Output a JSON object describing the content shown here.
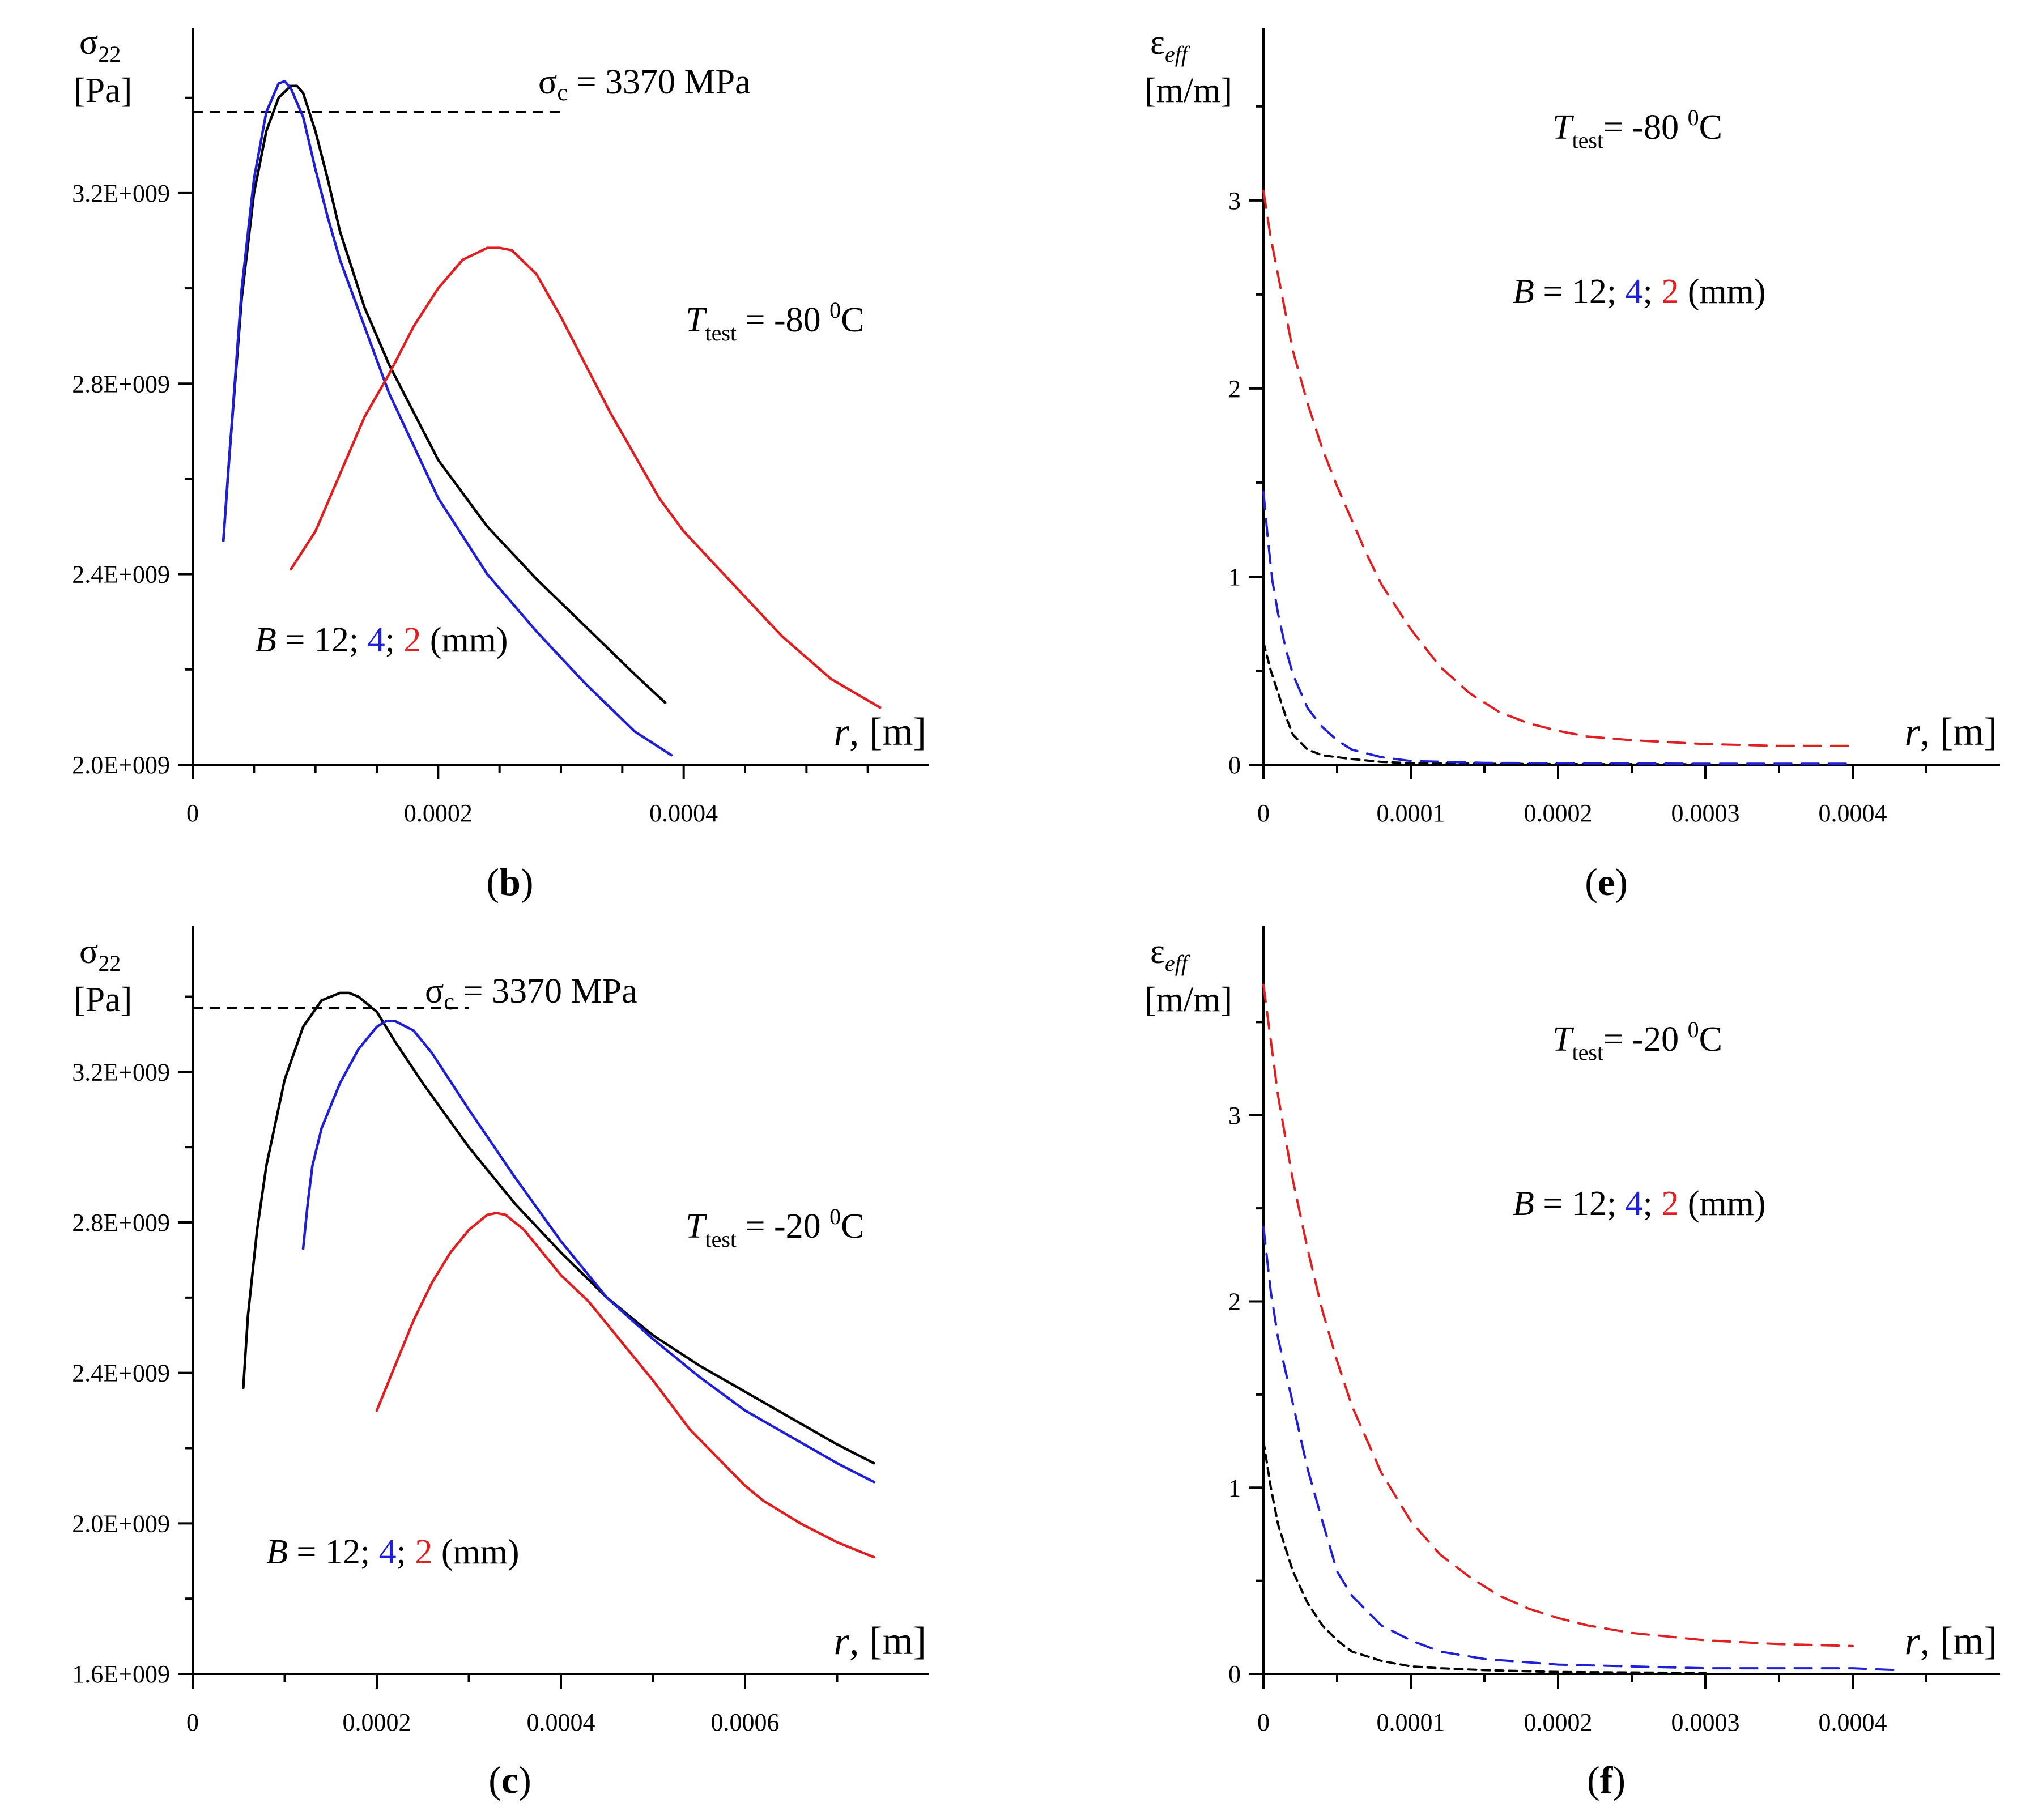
{
  "chart_data": [
    {
      "id": "b",
      "type": "line",
      "panel_label": "(b)",
      "ylabel_symbol": "σ",
      "ylabel_subscript": "22",
      "ylabel_unit": "[Pa]",
      "xlabel_var": "r",
      "xlabel_unit": ", [m]",
      "xlim": [
        0,
        0.0006
      ],
      "ylim": [
        2000000000,
        3540000000
      ],
      "xticks_major": [
        0,
        0.0002,
        0.0004
      ],
      "xtick_labels": [
        "0",
        "0.0002",
        "0.0004"
      ],
      "xticks_minor": [
        5e-05,
        0.0001,
        0.00015,
        0.00025,
        0.0003,
        0.00035,
        0.00045,
        0.0005,
        0.00055
      ],
      "yticks_major": [
        2000000000,
        2400000000,
        2800000000,
        3200000000
      ],
      "ytick_labels": [
        "2.0E+009",
        "2.4E+009",
        "2.8E+009",
        "3.2E+009"
      ],
      "yticks_minor": [
        2200000000,
        2600000000,
        3000000000,
        3400000000
      ],
      "critical_stress": {
        "label_symbol": "σ",
        "label_subscript": "c",
        "label_value": " = 3370 MPa",
        "value": 3370000000,
        "x_range": [
          0,
          0.0003
        ],
        "color": "#000000"
      },
      "temperature": {
        "symbol": "T",
        "subscript": "test",
        "value_text": " = -80 ",
        "unit_sup": "0",
        "unit": "C"
      },
      "thickness": {
        "prefix": "B",
        "eq": " = ",
        "values": [
          "12",
          "4",
          "2"
        ],
        "colors": [
          "#000000",
          "#1f1fd6",
          "#e02020"
        ],
        "sep": "; ",
        "unit": " (mm)"
      },
      "series": [
        {
          "name": "B = 12 mm",
          "color": "#000000",
          "dash": false,
          "x": [
            2.5e-05,
            3e-05,
            4e-05,
            5e-05,
            6e-05,
            7e-05,
            8e-05,
            8.5e-05,
            9e-05,
            0.0001,
            0.00011,
            0.00012,
            0.00014,
            0.00016,
            0.0002,
            0.00024,
            0.00028,
            0.00032,
            0.00036,
            0.000385
          ],
          "y": [
            2470000000,
            2650000000,
            2980000000,
            3200000000,
            3330000000,
            3400000000,
            3425000000,
            3425000000,
            3410000000,
            3330000000,
            3230000000,
            3120000000,
            2960000000,
            2840000000,
            2640000000,
            2500000000,
            2390000000,
            2290000000,
            2190000000,
            2130000000
          ]
        },
        {
          "name": "B = 4 mm",
          "color": "#1f1fd6",
          "dash": false,
          "x": [
            2.5e-05,
            3e-05,
            4e-05,
            5e-05,
            6e-05,
            7e-05,
            7.5e-05,
            8e-05,
            9e-05,
            0.0001,
            0.00011,
            0.00012,
            0.00014,
            0.00016,
            0.0002,
            0.00024,
            0.00028,
            0.00032,
            0.00036,
            0.00039
          ],
          "y": [
            2470000000,
            2650000000,
            3000000000,
            3230000000,
            3370000000,
            3430000000,
            3435000000,
            3420000000,
            3360000000,
            3250000000,
            3150000000,
            3060000000,
            2920000000,
            2780000000,
            2560000000,
            2400000000,
            2280000000,
            2170000000,
            2070000000,
            2020000000
          ]
        },
        {
          "name": "B = 2 mm",
          "color": "#e02020",
          "dash": false,
          "x": [
            8e-05,
            0.0001,
            0.00012,
            0.00014,
            0.00016,
            0.00018,
            0.0002,
            0.00022,
            0.00024,
            0.00025,
            0.00026,
            0.00028,
            0.0003,
            0.00032,
            0.00034,
            0.00036,
            0.00038,
            0.0004,
            0.00044,
            0.00048,
            0.00052,
            0.00056
          ],
          "y": [
            2410000000,
            2490000000,
            2610000000,
            2730000000,
            2820000000,
            2920000000,
            3000000000,
            3060000000,
            3085000000,
            3085000000,
            3080000000,
            3030000000,
            2940000000,
            2840000000,
            2740000000,
            2650000000,
            2560000000,
            2490000000,
            2380000000,
            2270000000,
            2180000000,
            2120000000
          ]
        }
      ]
    },
    {
      "id": "e",
      "type": "line",
      "panel_label": "(e)",
      "ylabel_symbol": "ε",
      "ylabel_subscript": "eff",
      "ylabel_unit": "[m/m]",
      "xlabel_var": "r",
      "xlabel_unit": ", [m]",
      "xlim": [
        0,
        0.0005
      ],
      "ylim": [
        0,
        3.9
      ],
      "xticks_major": [
        0,
        0.0001,
        0.0002,
        0.0003,
        0.0004
      ],
      "xtick_labels": [
        "0",
        "0.0001",
        "0.0002",
        "0.0003",
        "0.0004"
      ],
      "xticks_minor": [
        5e-05,
        0.00015,
        0.00025,
        0.00035,
        0.00045
      ],
      "yticks_major": [
        0,
        1,
        2,
        3
      ],
      "ytick_labels": [
        "0",
        "1",
        "2",
        "3"
      ],
      "yticks_minor": [
        0.5,
        1.5,
        2.5,
        3.5
      ],
      "temperature": {
        "symbol": "T",
        "subscript": "test",
        "value_text": "= -80 ",
        "unit_sup": "0",
        "unit": "C"
      },
      "thickness": {
        "prefix": "B",
        "eq": " = ",
        "values": [
          "12",
          "4",
          "2"
        ],
        "colors": [
          "#000000",
          "#1f1fd6",
          "#e02020"
        ],
        "sep": "; ",
        "unit": " (mm)"
      },
      "series": [
        {
          "name": "B = 12 mm",
          "color": "#000000",
          "dash": true,
          "x": [
            0,
            5e-06,
            1e-05,
            1.5e-05,
            2e-05,
            3e-05,
            4e-05,
            6e-05,
            8e-05,
            0.0001,
            0.00015,
            0.0002,
            0.0003
          ],
          "y": [
            0.65,
            0.5,
            0.38,
            0.26,
            0.16,
            0.08,
            0.05,
            0.03,
            0.015,
            0.008,
            0.005,
            0.003,
            0.002
          ]
        },
        {
          "name": "B = 4 mm",
          "color": "#1f1fd6",
          "dash": true,
          "x": [
            0,
            3e-06,
            6e-06,
            1e-05,
            1.5e-05,
            2e-05,
            3e-05,
            4e-05,
            5e-05,
            6e-05,
            8e-05,
            0.0001,
            0.00015,
            0.0002,
            0.0003,
            0.0004
          ],
          "y": [
            1.45,
            1.2,
            0.98,
            0.8,
            0.62,
            0.48,
            0.3,
            0.2,
            0.13,
            0.08,
            0.04,
            0.02,
            0.01,
            0.008,
            0.005,
            0.005
          ]
        },
        {
          "name": "B = 2 mm",
          "color": "#e02020",
          "dash": true,
          "x": [
            0,
            5e-06,
            1e-05,
            2e-05,
            3e-05,
            4e-05,
            5e-05,
            6e-05,
            7e-05,
            8e-05,
            0.0001,
            0.00012,
            0.00014,
            0.00016,
            0.00018,
            0.0002,
            0.00022,
            0.00025,
            0.0003,
            0.00035,
            0.0004
          ],
          "y": [
            3.05,
            2.8,
            2.6,
            2.2,
            1.92,
            1.68,
            1.48,
            1.3,
            1.12,
            0.96,
            0.72,
            0.52,
            0.38,
            0.28,
            0.22,
            0.18,
            0.15,
            0.13,
            0.11,
            0.1,
            0.1
          ]
        }
      ]
    },
    {
      "id": "c",
      "type": "line",
      "panel_label": "(c)",
      "ylabel_symbol": "σ",
      "ylabel_subscript": "22",
      "ylabel_unit": "[Pa]",
      "xlabel_var": "r",
      "xlabel_unit": ", [m]",
      "xlim": [
        0,
        0.0008
      ],
      "ylim": [
        1600000000,
        3580000000
      ],
      "xticks_major": [
        0,
        0.0002,
        0.0004,
        0.0006
      ],
      "xtick_labels": [
        "0",
        "0.0002",
        "0.0004",
        "0.0006"
      ],
      "xticks_minor": [
        0.0001,
        0.0003,
        0.0005,
        0.0007
      ],
      "yticks_major": [
        1600000000,
        2000000000,
        2400000000,
        2800000000,
        3200000000
      ],
      "ytick_labels": [
        "1.6E+009",
        "2.0E+009",
        "2.4E+009",
        "2.8E+009",
        "3.2E+009"
      ],
      "yticks_minor": [
        1800000000,
        2200000000,
        2600000000,
        3000000000,
        3400000000
      ],
      "critical_stress": {
        "label_symbol": "σ",
        "label_subscript": "c",
        "label_value": " = 3370 MPa",
        "value": 3370000000,
        "x_range": [
          0,
          0.0003
        ],
        "color": "#000000"
      },
      "temperature": {
        "symbol": "T",
        "subscript": "test",
        "value_text": " = -20 ",
        "unit_sup": "0",
        "unit": "C"
      },
      "thickness": {
        "prefix": "B",
        "eq": " = ",
        "values": [
          "12",
          "4",
          "2"
        ],
        "colors": [
          "#000000",
          "#1f1fd6",
          "#e02020"
        ],
        "sep": "; ",
        "unit": " (mm)"
      },
      "series": [
        {
          "name": "B = 12 mm",
          "color": "#000000",
          "dash": false,
          "x": [
            5.5e-05,
            6e-05,
            7e-05,
            8e-05,
            0.0001,
            0.00012,
            0.00014,
            0.00016,
            0.00017,
            0.00018,
            0.0002,
            0.00022,
            0.00025,
            0.0003,
            0.00035,
            0.0004,
            0.00045,
            0.0005,
            0.00055,
            0.0006,
            0.00065,
            0.0007,
            0.00074
          ],
          "y": [
            2360000000,
            2550000000,
            2780000000,
            2950000000,
            3180000000,
            3320000000,
            3390000000,
            3410000000,
            3410000000,
            3400000000,
            3360000000,
            3280000000,
            3170000000,
            3000000000,
            2850000000,
            2720000000,
            2600000000,
            2500000000,
            2420000000,
            2350000000,
            2280000000,
            2210000000,
            2160000000
          ]
        },
        {
          "name": "B = 4 mm",
          "color": "#1f1fd6",
          "dash": false,
          "x": [
            0.00012,
            0.000125,
            0.00013,
            0.00014,
            0.00016,
            0.00018,
            0.0002,
            0.00021,
            0.00022,
            0.00024,
            0.00026,
            0.0003,
            0.00035,
            0.0004,
            0.00045,
            0.0005,
            0.00055,
            0.0006,
            0.00065,
            0.0007,
            0.00074
          ],
          "y": [
            2730000000,
            2850000000,
            2950000000,
            3050000000,
            3170000000,
            3260000000,
            3320000000,
            3335000000,
            3335000000,
            3310000000,
            3250000000,
            3100000000,
            2920000000,
            2750000000,
            2600000000,
            2490000000,
            2390000000,
            2300000000,
            2230000000,
            2160000000,
            2110000000
          ]
        },
        {
          "name": "B = 2 mm",
          "color": "#e02020",
          "dash": false,
          "x": [
            0.0002,
            0.00022,
            0.00024,
            0.00026,
            0.00028,
            0.0003,
            0.00032,
            0.00033,
            0.00034,
            0.00036,
            0.00038,
            0.0004,
            0.00043,
            0.00046,
            0.0005,
            0.00054,
            0.00058,
            0.0006,
            0.00062,
            0.00066,
            0.0007,
            0.00074
          ],
          "y": [
            2300000000,
            2420000000,
            2540000000,
            2640000000,
            2720000000,
            2780000000,
            2820000000,
            2825000000,
            2820000000,
            2780000000,
            2720000000,
            2660000000,
            2590000000,
            2500000000,
            2380000000,
            2250000000,
            2150000000,
            2100000000,
            2060000000,
            2000000000,
            1950000000,
            1910000000
          ]
        }
      ]
    },
    {
      "id": "f",
      "type": "line",
      "panel_label": "(f)",
      "ylabel_symbol": "ε",
      "ylabel_subscript": "eff",
      "ylabel_unit": "[m/m]",
      "xlabel_var": "r",
      "xlabel_unit": ", [m]",
      "xlim": [
        0,
        0.0005
      ],
      "ylim": [
        0,
        4.0
      ],
      "xticks_major": [
        0,
        0.0001,
        0.0002,
        0.0003,
        0.0004
      ],
      "xtick_labels": [
        "0",
        "0.0001",
        "0.0002",
        "0.0003",
        "0.0004"
      ],
      "xticks_minor": [
        5e-05,
        0.00015,
        0.00025,
        0.00035,
        0.00045
      ],
      "yticks_major": [
        0,
        1,
        2,
        3
      ],
      "ytick_labels": [
        "0",
        "1",
        "2",
        "3"
      ],
      "yticks_minor": [
        0.5,
        1.5,
        2.5,
        3.5
      ],
      "temperature": {
        "symbol": "T",
        "subscript": "test",
        "value_text": "= -20 ",
        "unit_sup": "0",
        "unit": "C"
      },
      "thickness": {
        "prefix": "B",
        "eq": " = ",
        "values": [
          "12",
          "4",
          "2"
        ],
        "colors": [
          "#000000",
          "#1f1fd6",
          "#e02020"
        ],
        "sep": "; ",
        "unit": " (mm)"
      },
      "series": [
        {
          "name": "B = 12 mm",
          "color": "#000000",
          "dash": true,
          "x": [
            0,
            5e-06,
            1e-05,
            2e-05,
            3e-05,
            4e-05,
            5e-05,
            6e-05,
            8e-05,
            0.0001,
            0.00012,
            0.00015,
            0.0002,
            0.0003
          ],
          "y": [
            1.25,
            1.0,
            0.8,
            0.55,
            0.38,
            0.26,
            0.18,
            0.12,
            0.07,
            0.04,
            0.03,
            0.02,
            0.01,
            0.005
          ]
        },
        {
          "name": "B = 4 mm",
          "color": "#1f1fd6",
          "dash": true,
          "x": [
            0,
            5e-06,
            1e-05,
            2e-05,
            3e-05,
            4e-05,
            5e-05,
            6e-05,
            8e-05,
            0.0001,
            0.00012,
            0.00015,
            0.0002,
            0.0003,
            0.0004,
            0.00043
          ],
          "y": [
            2.4,
            2.05,
            1.8,
            1.45,
            1.1,
            0.82,
            0.55,
            0.42,
            0.26,
            0.18,
            0.12,
            0.08,
            0.05,
            0.03,
            0.03,
            0.02
          ]
        },
        {
          "name": "B = 2 mm",
          "color": "#e02020",
          "dash": true,
          "x": [
            0,
            5e-06,
            1e-05,
            2e-05,
            3e-05,
            4e-05,
            5e-05,
            6e-05,
            8e-05,
            0.0001,
            0.00012,
            0.00014,
            0.00016,
            0.00018,
            0.0002,
            0.00022,
            0.00025,
            0.0003,
            0.00035,
            0.0004
          ],
          "y": [
            3.7,
            3.4,
            3.1,
            2.65,
            2.28,
            1.95,
            1.68,
            1.44,
            1.08,
            0.82,
            0.64,
            0.52,
            0.42,
            0.35,
            0.3,
            0.26,
            0.22,
            0.18,
            0.16,
            0.15
          ]
        }
      ]
    }
  ]
}
